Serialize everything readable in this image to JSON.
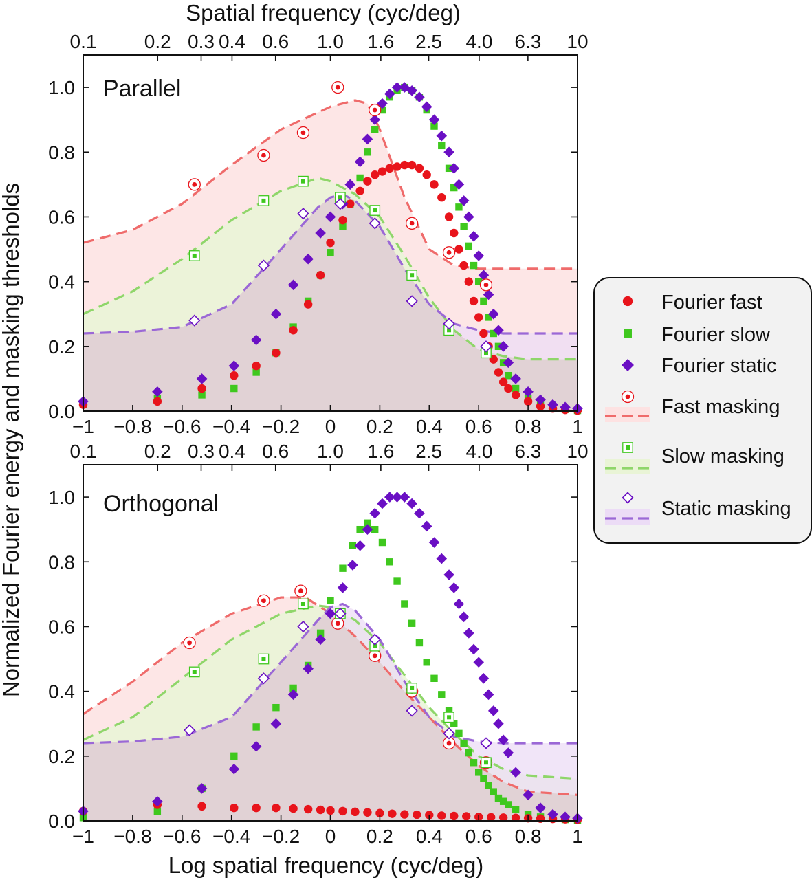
{
  "colors": {
    "fast": "#e8141b",
    "slow": "#3fc81e",
    "static": "#6a0fc4",
    "fast_line": "#ef6b6b",
    "slow_line": "#8fd66a",
    "static_line": "#9b68d6",
    "fast_fill": "#fde2e2",
    "slow_fill": "#e9f4d6",
    "static_fill": "#ecdcf6",
    "overlap_fill": "#dfcfd0",
    "legend_bg": "#f2f2f2"
  },
  "axes": {
    "xlabel_bottom": "Log spatial frequency (cyc/deg)",
    "xlabel_top": "Spatial frequency (cyc/deg)",
    "ylabel": "Normalized Fourier energy and masking thresholds",
    "bottom_ticks": [
      "−1",
      "−0.8",
      "−0.6",
      "−0.4",
      "−0.2",
      "0",
      "0.2",
      "0.4",
      "0.6",
      "0.8",
      "1"
    ],
    "top_ticks": [
      "0.1",
      "0.2",
      "0.3",
      "0.4",
      "0.6",
      "1.0",
      "1.6",
      "2.5",
      "4.0",
      "6.3",
      "10"
    ],
    "y_ticks": [
      "0.0",
      "0.2",
      "0.4",
      "0.6",
      "0.8",
      "1.0"
    ]
  },
  "legend": {
    "fourier_fast": "Fourier fast",
    "fourier_slow": "Fourier slow",
    "fourier_static": "Fourier static",
    "fast_masking": "Fast masking",
    "slow_masking": "Slow masking",
    "static_masking": "Static masking"
  },
  "chart_data": [
    {
      "type": "scatter",
      "title": "Parallel",
      "xlabel": "Log spatial frequency (cyc/deg)",
      "ylabel": "Normalized Fourier energy and masking thresholds",
      "xlim": [
        -1,
        1
      ],
      "ylim": [
        0,
        1.1
      ],
      "grid": false,
      "series": [
        {
          "name": "Fourier fast",
          "kind": "fourier",
          "key": "fast",
          "x": [
            -1.0,
            -0.7,
            -0.52,
            -0.39,
            -0.3,
            -0.22,
            -0.15,
            -0.09,
            -0.04,
            0.0,
            0.05,
            0.08,
            0.12,
            0.15,
            0.18,
            0.21,
            0.24,
            0.27,
            0.3,
            0.33,
            0.36,
            0.39,
            0.42,
            0.45,
            0.48,
            0.5,
            0.52,
            0.54,
            0.56,
            0.58,
            0.6,
            0.62,
            0.64,
            0.66,
            0.68,
            0.7,
            0.72,
            0.75,
            0.8,
            0.85,
            0.9,
            0.95,
            1.0
          ],
          "y": [
            0.02,
            0.03,
            0.07,
            0.11,
            0.14,
            0.18,
            0.25,
            0.33,
            0.42,
            0.52,
            0.59,
            0.64,
            0.68,
            0.71,
            0.73,
            0.74,
            0.75,
            0.755,
            0.76,
            0.76,
            0.75,
            0.73,
            0.7,
            0.66,
            0.6,
            0.55,
            0.5,
            0.45,
            0.4,
            0.34,
            0.29,
            0.24,
            0.2,
            0.16,
            0.12,
            0.09,
            0.07,
            0.05,
            0.03,
            0.015,
            0.008,
            0.004,
            0.002
          ]
        },
        {
          "name": "Fourier slow",
          "kind": "fourier",
          "key": "slow",
          "x": [
            -1.0,
            -0.7,
            -0.52,
            -0.39,
            -0.3,
            -0.22,
            -0.15,
            -0.09,
            -0.04,
            0.0,
            0.05,
            0.08,
            0.12,
            0.15,
            0.18,
            0.21,
            0.24,
            0.27,
            0.3,
            0.33,
            0.36,
            0.39,
            0.42,
            0.45,
            0.48,
            0.5,
            0.52,
            0.54,
            0.56,
            0.58,
            0.6,
            0.62,
            0.64,
            0.66,
            0.68,
            0.7,
            0.72,
            0.75,
            0.8,
            0.85,
            0.9,
            0.95,
            1.0
          ],
          "y": [
            0.02,
            0.04,
            0.05,
            0.07,
            0.12,
            0.18,
            0.26,
            0.34,
            0.42,
            0.49,
            0.57,
            0.64,
            0.72,
            0.8,
            0.87,
            0.93,
            0.97,
            0.99,
            1.0,
            0.99,
            0.97,
            0.93,
            0.88,
            0.82,
            0.75,
            0.69,
            0.63,
            0.57,
            0.51,
            0.45,
            0.4,
            0.34,
            0.29,
            0.24,
            0.2,
            0.15,
            0.11,
            0.07,
            0.04,
            0.02,
            0.01,
            0.005,
            0.002
          ]
        },
        {
          "name": "Fourier static",
          "kind": "fourier",
          "key": "static",
          "x": [
            -1.0,
            -0.7,
            -0.52,
            -0.39,
            -0.3,
            -0.22,
            -0.15,
            -0.09,
            -0.04,
            0.0,
            0.05,
            0.08,
            0.12,
            0.15,
            0.18,
            0.21,
            0.24,
            0.27,
            0.3,
            0.33,
            0.36,
            0.39,
            0.42,
            0.45,
            0.48,
            0.5,
            0.52,
            0.54,
            0.56,
            0.58,
            0.6,
            0.62,
            0.64,
            0.66,
            0.68,
            0.7,
            0.72,
            0.75,
            0.8,
            0.85,
            0.9,
            0.95,
            1.0
          ],
          "y": [
            0.03,
            0.06,
            0.1,
            0.14,
            0.22,
            0.3,
            0.39,
            0.47,
            0.55,
            0.6,
            0.64,
            0.7,
            0.77,
            0.84,
            0.9,
            0.95,
            0.98,
            1.0,
            1.0,
            0.99,
            0.97,
            0.94,
            0.9,
            0.85,
            0.8,
            0.75,
            0.7,
            0.65,
            0.6,
            0.54,
            0.48,
            0.42,
            0.36,
            0.3,
            0.25,
            0.2,
            0.15,
            0.1,
            0.06,
            0.035,
            0.02,
            0.012,
            0.008
          ]
        },
        {
          "name": "Fast masking",
          "kind": "masking",
          "key": "fast",
          "x": [
            -0.55,
            -0.27,
            -0.11,
            0.03,
            0.18,
            0.33,
            0.48,
            0.63
          ],
          "y": [
            0.7,
            0.79,
            0.86,
            1.0,
            0.93,
            0.58,
            0.49,
            0.39
          ],
          "curve_x": [
            -1.0,
            -0.8,
            -0.6,
            -0.4,
            -0.2,
            0.0,
            0.1,
            0.15,
            0.2,
            0.3,
            0.4,
            0.5,
            0.6,
            0.7,
            0.8,
            1.0
          ],
          "curve_y": [
            0.52,
            0.56,
            0.64,
            0.76,
            0.87,
            0.94,
            0.96,
            0.95,
            0.87,
            0.66,
            0.5,
            0.45,
            0.44,
            0.44,
            0.44,
            0.44
          ]
        },
        {
          "name": "Slow masking",
          "kind": "masking",
          "key": "slow",
          "x": [
            -0.55,
            -0.27,
            -0.11,
            0.04,
            0.18,
            0.33,
            0.48,
            0.63
          ],
          "y": [
            0.48,
            0.65,
            0.71,
            0.66,
            0.62,
            0.42,
            0.25,
            0.18
          ],
          "curve_x": [
            -1.0,
            -0.8,
            -0.6,
            -0.4,
            -0.2,
            -0.05,
            0.0,
            0.1,
            0.2,
            0.3,
            0.4,
            0.5,
            0.6,
            0.7,
            0.8,
            1.0
          ],
          "curve_y": [
            0.3,
            0.37,
            0.47,
            0.59,
            0.68,
            0.72,
            0.71,
            0.67,
            0.6,
            0.48,
            0.35,
            0.25,
            0.19,
            0.17,
            0.16,
            0.16
          ]
        },
        {
          "name": "Static masking",
          "kind": "masking",
          "key": "static",
          "x": [
            -0.55,
            -0.27,
            -0.11,
            0.04,
            0.18,
            0.33,
            0.48,
            0.63
          ],
          "y": [
            0.28,
            0.45,
            0.61,
            0.64,
            0.58,
            0.34,
            0.27,
            0.2
          ],
          "curve_x": [
            -1.0,
            -0.8,
            -0.6,
            -0.4,
            -0.2,
            -0.05,
            0.0,
            0.05,
            0.1,
            0.2,
            0.3,
            0.4,
            0.5,
            0.6,
            0.7,
            0.8,
            1.0
          ],
          "curve_y": [
            0.24,
            0.245,
            0.26,
            0.33,
            0.5,
            0.63,
            0.66,
            0.67,
            0.65,
            0.57,
            0.44,
            0.33,
            0.27,
            0.25,
            0.24,
            0.24,
            0.24
          ]
        }
      ]
    },
    {
      "type": "scatter",
      "title": "Orthogonal",
      "xlabel": "Log spatial frequency (cyc/deg)",
      "ylabel": "Normalized Fourier energy and masking thresholds",
      "xlim": [
        -1,
        1
      ],
      "ylim": [
        0,
        1.1
      ],
      "grid": false,
      "series": [
        {
          "name": "Fourier fast",
          "kind": "fourier",
          "key": "fast",
          "x": [
            -1.0,
            -0.7,
            -0.52,
            -0.39,
            -0.3,
            -0.22,
            -0.15,
            -0.09,
            -0.04,
            0.0,
            0.05,
            0.1,
            0.15,
            0.2,
            0.25,
            0.3,
            0.35,
            0.4,
            0.45,
            0.5,
            0.55,
            0.6,
            0.65,
            0.7,
            0.75,
            0.8,
            0.85,
            0.9,
            0.95,
            1.0
          ],
          "y": [
            0.03,
            0.05,
            0.045,
            0.04,
            0.04,
            0.04,
            0.038,
            0.036,
            0.034,
            0.032,
            0.03,
            0.028,
            0.026,
            0.024,
            0.022,
            0.02,
            0.019,
            0.018,
            0.016,
            0.015,
            0.014,
            0.012,
            0.011,
            0.01,
            0.009,
            0.008,
            0.007,
            0.006,
            0.005,
            0.004
          ]
        },
        {
          "name": "Fourier slow",
          "kind": "fourier",
          "key": "slow",
          "x": [
            -1.0,
            -0.7,
            -0.52,
            -0.39,
            -0.3,
            -0.22,
            -0.15,
            -0.09,
            -0.04,
            0.0,
            0.05,
            0.09,
            0.12,
            0.15,
            0.18,
            0.21,
            0.24,
            0.27,
            0.3,
            0.33,
            0.36,
            0.39,
            0.42,
            0.45,
            0.48,
            0.5,
            0.52,
            0.54,
            0.56,
            0.58,
            0.6,
            0.62,
            0.64,
            0.66,
            0.68,
            0.7,
            0.72,
            0.75,
            0.8,
            0.85,
            0.9,
            0.95,
            1.0
          ],
          "y": [
            0.01,
            0.03,
            0.1,
            0.2,
            0.29,
            0.35,
            0.41,
            0.48,
            0.58,
            0.68,
            0.78,
            0.85,
            0.9,
            0.92,
            0.9,
            0.86,
            0.8,
            0.74,
            0.67,
            0.61,
            0.55,
            0.49,
            0.44,
            0.39,
            0.34,
            0.3,
            0.27,
            0.24,
            0.21,
            0.18,
            0.15,
            0.13,
            0.11,
            0.09,
            0.07,
            0.06,
            0.05,
            0.035,
            0.02,
            0.012,
            0.007,
            0.004,
            0.002
          ]
        },
        {
          "name": "Fourier static",
          "kind": "fourier",
          "key": "static",
          "x": [
            -1.0,
            -0.7,
            -0.52,
            -0.39,
            -0.3,
            -0.22,
            -0.15,
            -0.09,
            -0.04,
            0.0,
            0.05,
            0.09,
            0.12,
            0.15,
            0.18,
            0.21,
            0.24,
            0.27,
            0.3,
            0.33,
            0.36,
            0.39,
            0.42,
            0.45,
            0.48,
            0.5,
            0.52,
            0.54,
            0.56,
            0.58,
            0.6,
            0.62,
            0.64,
            0.66,
            0.68,
            0.7,
            0.72,
            0.75,
            0.8,
            0.85,
            0.9,
            0.95,
            1.0
          ],
          "y": [
            0.03,
            0.06,
            0.1,
            0.16,
            0.23,
            0.3,
            0.39,
            0.47,
            0.56,
            0.64,
            0.72,
            0.79,
            0.85,
            0.9,
            0.95,
            0.98,
            1.0,
            1.0,
            1.0,
            0.98,
            0.95,
            0.91,
            0.86,
            0.81,
            0.76,
            0.72,
            0.67,
            0.63,
            0.58,
            0.53,
            0.49,
            0.44,
            0.39,
            0.34,
            0.3,
            0.25,
            0.21,
            0.15,
            0.08,
            0.04,
            0.02,
            0.012,
            0.008
          ]
        },
        {
          "name": "Fast masking",
          "kind": "masking",
          "key": "fast",
          "x": [
            -0.57,
            -0.27,
            -0.12,
            0.03,
            0.18,
            0.33,
            0.48,
            0.63
          ],
          "y": [
            0.55,
            0.68,
            0.71,
            0.61,
            0.51,
            0.4,
            0.24,
            0.18
          ],
          "curve_x": [
            -1.0,
            -0.8,
            -0.6,
            -0.4,
            -0.2,
            -0.1,
            0.0,
            0.1,
            0.2,
            0.3,
            0.4,
            0.5,
            0.6,
            0.7,
            0.8,
            1.0
          ],
          "curve_y": [
            0.33,
            0.43,
            0.55,
            0.64,
            0.69,
            0.69,
            0.64,
            0.57,
            0.49,
            0.4,
            0.32,
            0.24,
            0.17,
            0.12,
            0.09,
            0.08
          ]
        },
        {
          "name": "Slow masking",
          "kind": "masking",
          "key": "slow",
          "x": [
            -0.55,
            -0.27,
            -0.11,
            0.04,
            0.18,
            0.33,
            0.48,
            0.63
          ],
          "y": [
            0.46,
            0.5,
            0.67,
            0.64,
            0.54,
            0.41,
            0.32,
            0.18
          ],
          "curve_x": [
            -1.0,
            -0.8,
            -0.6,
            -0.4,
            -0.2,
            -0.05,
            0.0,
            0.1,
            0.2,
            0.3,
            0.4,
            0.5,
            0.6,
            0.7,
            0.8,
            1.0
          ],
          "curve_y": [
            0.25,
            0.32,
            0.44,
            0.56,
            0.64,
            0.665,
            0.66,
            0.62,
            0.55,
            0.45,
            0.35,
            0.27,
            0.2,
            0.16,
            0.14,
            0.13
          ]
        },
        {
          "name": "Static masking",
          "kind": "masking",
          "key": "static",
          "x": [
            -0.57,
            -0.27,
            -0.11,
            0.04,
            0.18,
            0.33,
            0.48,
            0.63
          ],
          "y": [
            0.28,
            0.44,
            0.6,
            0.64,
            0.56,
            0.34,
            0.27,
            0.24
          ],
          "curve_x": [
            -1.0,
            -0.8,
            -0.6,
            -0.4,
            -0.2,
            -0.05,
            0.0,
            0.05,
            0.1,
            0.2,
            0.3,
            0.4,
            0.5,
            0.6,
            0.7,
            0.8,
            1.0
          ],
          "curve_y": [
            0.24,
            0.245,
            0.26,
            0.32,
            0.49,
            0.62,
            0.66,
            0.67,
            0.65,
            0.56,
            0.43,
            0.32,
            0.26,
            0.245,
            0.24,
            0.24,
            0.24
          ]
        }
      ]
    }
  ]
}
